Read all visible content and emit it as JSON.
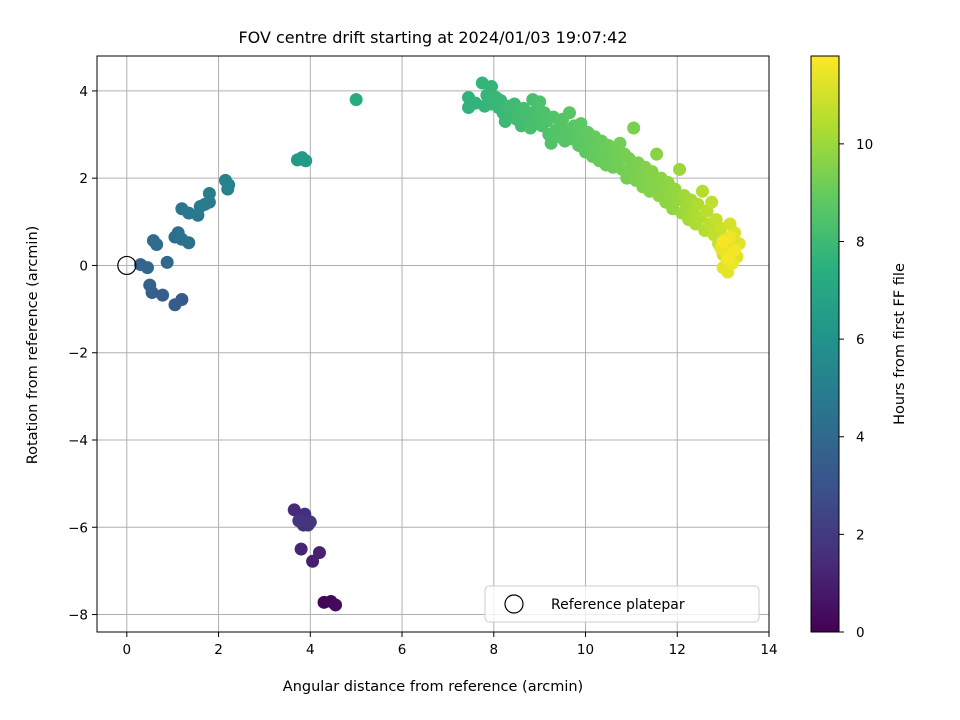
{
  "chart_data": {
    "type": "scatter",
    "title": "FOV centre drift starting at 2024/01/03 19:07:42",
    "xlabel": "Angular distance from reference (arcmin)",
    "ylabel": "Rotation from reference (arcmin)",
    "xlim": [
      -0.65,
      14.0
    ],
    "ylim": [
      -8.4,
      4.8
    ],
    "xticks": [
      0,
      2,
      4,
      6,
      8,
      10,
      12,
      14
    ],
    "xtick_labels": [
      "0",
      "2",
      "4",
      "6",
      "8",
      "10",
      "12",
      "14"
    ],
    "yticks": [
      -8,
      -6,
      -4,
      -2,
      0,
      2,
      4
    ],
    "ytick_labels": [
      "−8",
      "−6",
      "−4",
      "−2",
      "0",
      "2",
      "4"
    ],
    "grid": true,
    "colormap": "viridis",
    "colorbar": {
      "label": "Hours from first FF file",
      "range": [
        0,
        11.8
      ],
      "ticks": [
        0,
        2,
        4,
        6,
        8,
        10
      ],
      "tick_labels": [
        "0",
        "2",
        "4",
        "6",
        "8",
        "10"
      ]
    },
    "legend": {
      "position": "lower-right",
      "entries": [
        "Reference platepar"
      ]
    },
    "reference_point": {
      "x": 0,
      "y": 0,
      "marker": "open-circle"
    },
    "points": [
      {
        "x": 4.3,
        "y": -7.72,
        "t": 0.1
      },
      {
        "x": 4.45,
        "y": -7.7,
        "t": 0.2
      },
      {
        "x": 4.55,
        "y": -7.78,
        "t": 0.3
      },
      {
        "x": 4.05,
        "y": -6.78,
        "t": 1.0
      },
      {
        "x": 4.2,
        "y": -6.58,
        "t": 1.1
      },
      {
        "x": 3.8,
        "y": -6.5,
        "t": 1.2
      },
      {
        "x": 3.65,
        "y": -5.6,
        "t": 1.4
      },
      {
        "x": 3.8,
        "y": -5.8,
        "t": 1.5
      },
      {
        "x": 3.88,
        "y": -5.7,
        "t": 1.55
      },
      {
        "x": 3.85,
        "y": -5.95,
        "t": 1.6
      },
      {
        "x": 3.95,
        "y": -5.95,
        "t": 1.7
      },
      {
        "x": 4.0,
        "y": -5.88,
        "t": 1.8
      },
      {
        "x": 3.75,
        "y": -5.85,
        "t": 1.85
      },
      {
        "x": 1.2,
        "y": -0.78,
        "t": 3.3
      },
      {
        "x": 1.05,
        "y": -0.9,
        "t": 3.4
      },
      {
        "x": 0.78,
        "y": -0.68,
        "t": 3.5
      },
      {
        "x": 0.55,
        "y": -0.62,
        "t": 3.6
      },
      {
        "x": 0.5,
        "y": -0.45,
        "t": 3.7
      },
      {
        "x": 0.3,
        "y": 0.02,
        "t": 3.8
      },
      {
        "x": 0.45,
        "y": -0.05,
        "t": 3.9
      },
      {
        "x": 0.88,
        "y": 0.07,
        "t": 4.0
      },
      {
        "x": 0.58,
        "y": 0.57,
        "t": 4.1
      },
      {
        "x": 0.65,
        "y": 0.48,
        "t": 4.15
      },
      {
        "x": 1.05,
        "y": 0.65,
        "t": 4.2
      },
      {
        "x": 1.12,
        "y": 0.75,
        "t": 4.3
      },
      {
        "x": 1.35,
        "y": 0.52,
        "t": 4.35
      },
      {
        "x": 1.2,
        "y": 0.6,
        "t": 4.4
      },
      {
        "x": 1.2,
        "y": 1.3,
        "t": 4.6
      },
      {
        "x": 1.35,
        "y": 1.2,
        "t": 4.65
      },
      {
        "x": 1.55,
        "y": 1.15,
        "t": 4.7
      },
      {
        "x": 1.6,
        "y": 1.35,
        "t": 4.8
      },
      {
        "x": 1.7,
        "y": 1.4,
        "t": 4.85
      },
      {
        "x": 1.8,
        "y": 1.45,
        "t": 4.9
      },
      {
        "x": 1.8,
        "y": 1.65,
        "t": 5.0
      },
      {
        "x": 2.2,
        "y": 1.75,
        "t": 5.1
      },
      {
        "x": 2.15,
        "y": 1.95,
        "t": 5.2
      },
      {
        "x": 2.22,
        "y": 1.85,
        "t": 5.25
      },
      {
        "x": 3.72,
        "y": 2.42,
        "t": 6.3
      },
      {
        "x": 3.82,
        "y": 2.47,
        "t": 6.35
      },
      {
        "x": 3.9,
        "y": 2.4,
        "t": 6.4
      },
      {
        "x": 5.0,
        "y": 3.8,
        "t": 7.2
      },
      {
        "x": 7.45,
        "y": 3.85,
        "t": 7.6
      },
      {
        "x": 7.45,
        "y": 3.62,
        "t": 7.62
      },
      {
        "x": 7.6,
        "y": 3.72,
        "t": 7.65
      },
      {
        "x": 7.75,
        "y": 4.18,
        "t": 7.7
      },
      {
        "x": 7.95,
        "y": 4.1,
        "t": 7.72
      },
      {
        "x": 7.85,
        "y": 3.9,
        "t": 7.75
      },
      {
        "x": 7.8,
        "y": 3.65,
        "t": 7.78
      },
      {
        "x": 7.95,
        "y": 3.7,
        "t": 7.8
      },
      {
        "x": 8.05,
        "y": 3.85,
        "t": 7.82
      },
      {
        "x": 8.1,
        "y": 3.62,
        "t": 7.85
      },
      {
        "x": 8.15,
        "y": 3.78,
        "t": 7.88
      },
      {
        "x": 8.2,
        "y": 3.5,
        "t": 7.9
      },
      {
        "x": 8.25,
        "y": 3.3,
        "t": 7.95
      },
      {
        "x": 8.3,
        "y": 3.65,
        "t": 8.0
      },
      {
        "x": 8.35,
        "y": 3.45,
        "t": 8.02
      },
      {
        "x": 8.45,
        "y": 3.7,
        "t": 8.05
      },
      {
        "x": 8.5,
        "y": 3.35,
        "t": 8.1
      },
      {
        "x": 8.55,
        "y": 3.55,
        "t": 8.12
      },
      {
        "x": 8.6,
        "y": 3.2,
        "t": 8.15
      },
      {
        "x": 8.65,
        "y": 3.6,
        "t": 8.18
      },
      {
        "x": 8.7,
        "y": 3.4,
        "t": 8.2
      },
      {
        "x": 8.75,
        "y": 3.5,
        "t": 8.22
      },
      {
        "x": 8.8,
        "y": 3.15,
        "t": 8.25
      },
      {
        "x": 8.85,
        "y": 3.8,
        "t": 8.27
      },
      {
        "x": 8.9,
        "y": 3.35,
        "t": 8.3
      },
      {
        "x": 8.95,
        "y": 3.6,
        "t": 8.32
      },
      {
        "x": 9.0,
        "y": 3.75,
        "t": 8.35
      },
      {
        "x": 9.05,
        "y": 3.2,
        "t": 8.38
      },
      {
        "x": 9.1,
        "y": 3.5,
        "t": 8.4
      },
      {
        "x": 9.15,
        "y": 3.3,
        "t": 8.42
      },
      {
        "x": 9.2,
        "y": 3.0,
        "t": 8.45
      },
      {
        "x": 9.25,
        "y": 2.8,
        "t": 8.48
      },
      {
        "x": 9.3,
        "y": 3.4,
        "t": 8.5
      },
      {
        "x": 9.35,
        "y": 3.1,
        "t": 8.52
      },
      {
        "x": 9.4,
        "y": 2.95,
        "t": 8.55
      },
      {
        "x": 9.45,
        "y": 3.25,
        "t": 8.58
      },
      {
        "x": 9.5,
        "y": 3.35,
        "t": 8.6
      },
      {
        "x": 9.55,
        "y": 2.85,
        "t": 8.62
      },
      {
        "x": 9.6,
        "y": 3.1,
        "t": 8.65
      },
      {
        "x": 9.65,
        "y": 3.5,
        "t": 8.68
      },
      {
        "x": 9.7,
        "y": 2.9,
        "t": 8.7
      },
      {
        "x": 9.75,
        "y": 3.2,
        "t": 8.72
      },
      {
        "x": 9.8,
        "y": 3.0,
        "t": 8.75
      },
      {
        "x": 9.85,
        "y": 2.75,
        "t": 8.78
      },
      {
        "x": 9.9,
        "y": 3.25,
        "t": 8.8
      },
      {
        "x": 9.95,
        "y": 2.9,
        "t": 8.82
      },
      {
        "x": 10.0,
        "y": 2.6,
        "t": 8.85
      },
      {
        "x": 10.05,
        "y": 3.05,
        "t": 8.88
      },
      {
        "x": 10.1,
        "y": 2.8,
        "t": 8.9
      },
      {
        "x": 10.15,
        "y": 2.5,
        "t": 8.92
      },
      {
        "x": 10.2,
        "y": 2.95,
        "t": 8.95
      },
      {
        "x": 10.25,
        "y": 2.7,
        "t": 8.98
      },
      {
        "x": 10.3,
        "y": 2.4,
        "t": 9.0
      },
      {
        "x": 10.35,
        "y": 2.85,
        "t": 9.02
      },
      {
        "x": 10.4,
        "y": 2.6,
        "t": 9.05
      },
      {
        "x": 10.45,
        "y": 2.3,
        "t": 9.08
      },
      {
        "x": 10.5,
        "y": 2.75,
        "t": 9.1
      },
      {
        "x": 10.55,
        "y": 2.5,
        "t": 9.12
      },
      {
        "x": 10.6,
        "y": 2.25,
        "t": 9.15
      },
      {
        "x": 10.65,
        "y": 2.65,
        "t": 9.18
      },
      {
        "x": 10.7,
        "y": 2.4,
        "t": 9.2
      },
      {
        "x": 10.75,
        "y": 2.8,
        "t": 9.22
      },
      {
        "x": 10.8,
        "y": 2.2,
        "t": 9.25
      },
      {
        "x": 10.85,
        "y": 2.55,
        "t": 9.28
      },
      {
        "x": 10.9,
        "y": 2.0,
        "t": 9.3
      },
      {
        "x": 10.95,
        "y": 2.45,
        "t": 9.32
      },
      {
        "x": 11.0,
        "y": 2.2,
        "t": 9.35
      },
      {
        "x": 11.05,
        "y": 3.15,
        "t": 9.38
      },
      {
        "x": 11.1,
        "y": 1.95,
        "t": 9.4
      },
      {
        "x": 11.15,
        "y": 2.35,
        "t": 9.42
      },
      {
        "x": 11.2,
        "y": 2.1,
        "t": 9.45
      },
      {
        "x": 11.25,
        "y": 1.8,
        "t": 9.48
      },
      {
        "x": 11.3,
        "y": 2.25,
        "t": 9.5
      },
      {
        "x": 11.35,
        "y": 1.95,
        "t": 9.52
      },
      {
        "x": 11.4,
        "y": 1.7,
        "t": 9.55
      },
      {
        "x": 11.45,
        "y": 2.15,
        "t": 9.58
      },
      {
        "x": 11.5,
        "y": 1.85,
        "t": 9.6
      },
      {
        "x": 11.55,
        "y": 2.55,
        "t": 9.62
      },
      {
        "x": 11.6,
        "y": 1.6,
        "t": 9.65
      },
      {
        "x": 11.65,
        "y": 2.0,
        "t": 9.68
      },
      {
        "x": 11.7,
        "y": 1.75,
        "t": 9.7
      },
      {
        "x": 11.75,
        "y": 1.45,
        "t": 9.72
      },
      {
        "x": 11.8,
        "y": 1.9,
        "t": 9.75
      },
      {
        "x": 11.85,
        "y": 1.6,
        "t": 9.78
      },
      {
        "x": 11.9,
        "y": 1.3,
        "t": 9.8
      },
      {
        "x": 11.95,
        "y": 1.75,
        "t": 9.85
      },
      {
        "x": 12.0,
        "y": 1.5,
        "t": 9.9
      },
      {
        "x": 12.05,
        "y": 2.2,
        "t": 9.95
      },
      {
        "x": 12.1,
        "y": 1.2,
        "t": 10.0
      },
      {
        "x": 12.15,
        "y": 1.6,
        "t": 10.05
      },
      {
        "x": 12.2,
        "y": 1.35,
        "t": 10.1
      },
      {
        "x": 12.25,
        "y": 1.05,
        "t": 10.15
      },
      {
        "x": 12.3,
        "y": 1.5,
        "t": 10.2
      },
      {
        "x": 12.35,
        "y": 1.2,
        "t": 10.25
      },
      {
        "x": 12.4,
        "y": 0.95,
        "t": 10.3
      },
      {
        "x": 12.45,
        "y": 1.4,
        "t": 10.35
      },
      {
        "x": 12.5,
        "y": 1.1,
        "t": 10.4
      },
      {
        "x": 12.55,
        "y": 1.7,
        "t": 10.45
      },
      {
        "x": 12.6,
        "y": 0.8,
        "t": 10.5
      },
      {
        "x": 12.65,
        "y": 1.25,
        "t": 10.55
      },
      {
        "x": 12.7,
        "y": 0.95,
        "t": 10.6
      },
      {
        "x": 12.75,
        "y": 1.45,
        "t": 10.65
      },
      {
        "x": 12.8,
        "y": 0.7,
        "t": 10.7
      },
      {
        "x": 12.85,
        "y": 1.05,
        "t": 10.75
      },
      {
        "x": 12.9,
        "y": 0.5,
        "t": 10.8
      },
      {
        "x": 12.95,
        "y": 0.85,
        "t": 10.85
      },
      {
        "x": 13.0,
        "y": 0.25,
        "t": 10.9
      },
      {
        "x": 13.05,
        "y": 0.6,
        "t": 10.95
      },
      {
        "x": 13.1,
        "y": 0.1,
        "t": 11.0
      },
      {
        "x": 13.15,
        "y": 0.95,
        "t": 11.05
      },
      {
        "x": 13.2,
        "y": 0.4,
        "t": 11.1
      },
      {
        "x": 13.25,
        "y": 0.75,
        "t": 11.15
      },
      {
        "x": 13.3,
        "y": 0.2,
        "t": 11.2
      },
      {
        "x": 13.35,
        "y": 0.5,
        "t": 11.25
      },
      {
        "x": 13.0,
        "y": -0.05,
        "t": 11.3
      },
      {
        "x": 13.1,
        "y": -0.15,
        "t": 11.35
      },
      {
        "x": 12.95,
        "y": 0.4,
        "t": 11.4
      },
      {
        "x": 13.05,
        "y": 0.3,
        "t": 11.45
      },
      {
        "x": 13.2,
        "y": 0.05,
        "t": 11.5
      },
      {
        "x": 13.15,
        "y": 0.65,
        "t": 11.55
      },
      {
        "x": 13.25,
        "y": 0.35,
        "t": 11.6
      },
      {
        "x": 13.1,
        "y": 0.15,
        "t": 11.65
      },
      {
        "x": 13.0,
        "y": 0.55,
        "t": 11.7
      }
    ]
  }
}
